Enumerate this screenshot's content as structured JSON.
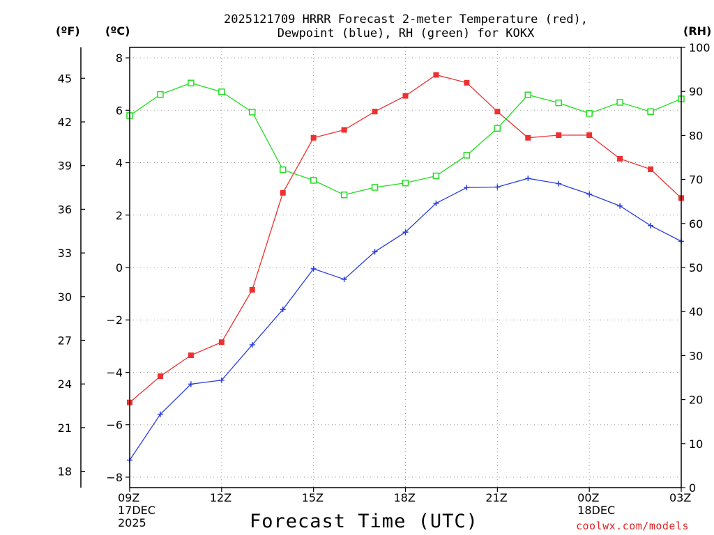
{
  "chart_data": {
    "type": "line",
    "title_lines": [
      "2025121709 HRRR Forecast 2-meter Temperature (red),",
      "Dewpoint (blue), RH (green) for KOKX"
    ],
    "unit_labels": {
      "fahrenheit": "(ºF)",
      "celsius": "(ºC)",
      "rh": "(RH)"
    },
    "xlabel": "Forecast Time (UTC)",
    "x_hours": [
      0,
      1,
      2,
      3,
      4,
      5,
      6,
      7,
      8,
      9,
      10,
      11,
      12,
      13,
      14,
      15,
      16,
      17,
      18
    ],
    "x_ticks": [
      {
        "hour": 0,
        "lines": [
          "09Z",
          "17DEC",
          "2025"
        ]
      },
      {
        "hour": 3,
        "lines": [
          "12Z"
        ]
      },
      {
        "hour": 6,
        "lines": [
          "15Z"
        ]
      },
      {
        "hour": 9,
        "lines": [
          "18Z"
        ]
      },
      {
        "hour": 12,
        "lines": [
          "21Z"
        ]
      },
      {
        "hour": 15,
        "lines": [
          "00Z",
          "18DEC"
        ]
      },
      {
        "hour": 18,
        "lines": [
          "03Z"
        ]
      }
    ],
    "ylim_celsius": [
      -8.4,
      8.4
    ],
    "yticks_celsius": [
      -8,
      -6,
      -4,
      -2,
      0,
      2,
      4,
      6,
      8
    ],
    "yticks_fahrenheit": [
      18,
      21,
      24,
      27,
      30,
      33,
      36,
      39,
      42,
      45
    ],
    "ylim_rh": [
      0,
      100
    ],
    "yticks_rh": [
      0,
      10,
      20,
      30,
      40,
      50,
      60,
      70,
      80,
      90,
      100
    ],
    "grid": true,
    "series": [
      {
        "name": "Temperature",
        "axis": "celsius",
        "color": "#ee3030",
        "marker": "filled-square",
        "values": [
          -5.15,
          -4.15,
          -3.35,
          -2.85,
          -0.85,
          2.85,
          4.95,
          5.25,
          5.95,
          6.55,
          7.35,
          7.05,
          5.95,
          4.95,
          5.05,
          5.05,
          4.15,
          3.75,
          2.65
        ]
      },
      {
        "name": "Dewpoint",
        "axis": "celsius",
        "color": "#2a3ee0",
        "marker": "plus",
        "values": [
          -7.35,
          -5.6,
          -4.45,
          -4.3,
          -2.95,
          -1.6,
          -0.05,
          -0.45,
          0.6,
          1.35,
          2.45,
          3.05,
          3.07,
          3.4,
          3.2,
          2.8,
          2.35,
          1.6,
          1.0
        ]
      },
      {
        "name": "RH",
        "axis": "rh",
        "color": "#22dd22",
        "marker": "open-square",
        "values": [
          84.5,
          89.3,
          91.9,
          89.9,
          85.3,
          72.2,
          69.8,
          66.5,
          68.2,
          69.2,
          70.8,
          75.5,
          81.6,
          89.2,
          87.4,
          85.0,
          87.5,
          85.4,
          88.3
        ]
      }
    ],
    "credit": "coolwx.com/models"
  }
}
